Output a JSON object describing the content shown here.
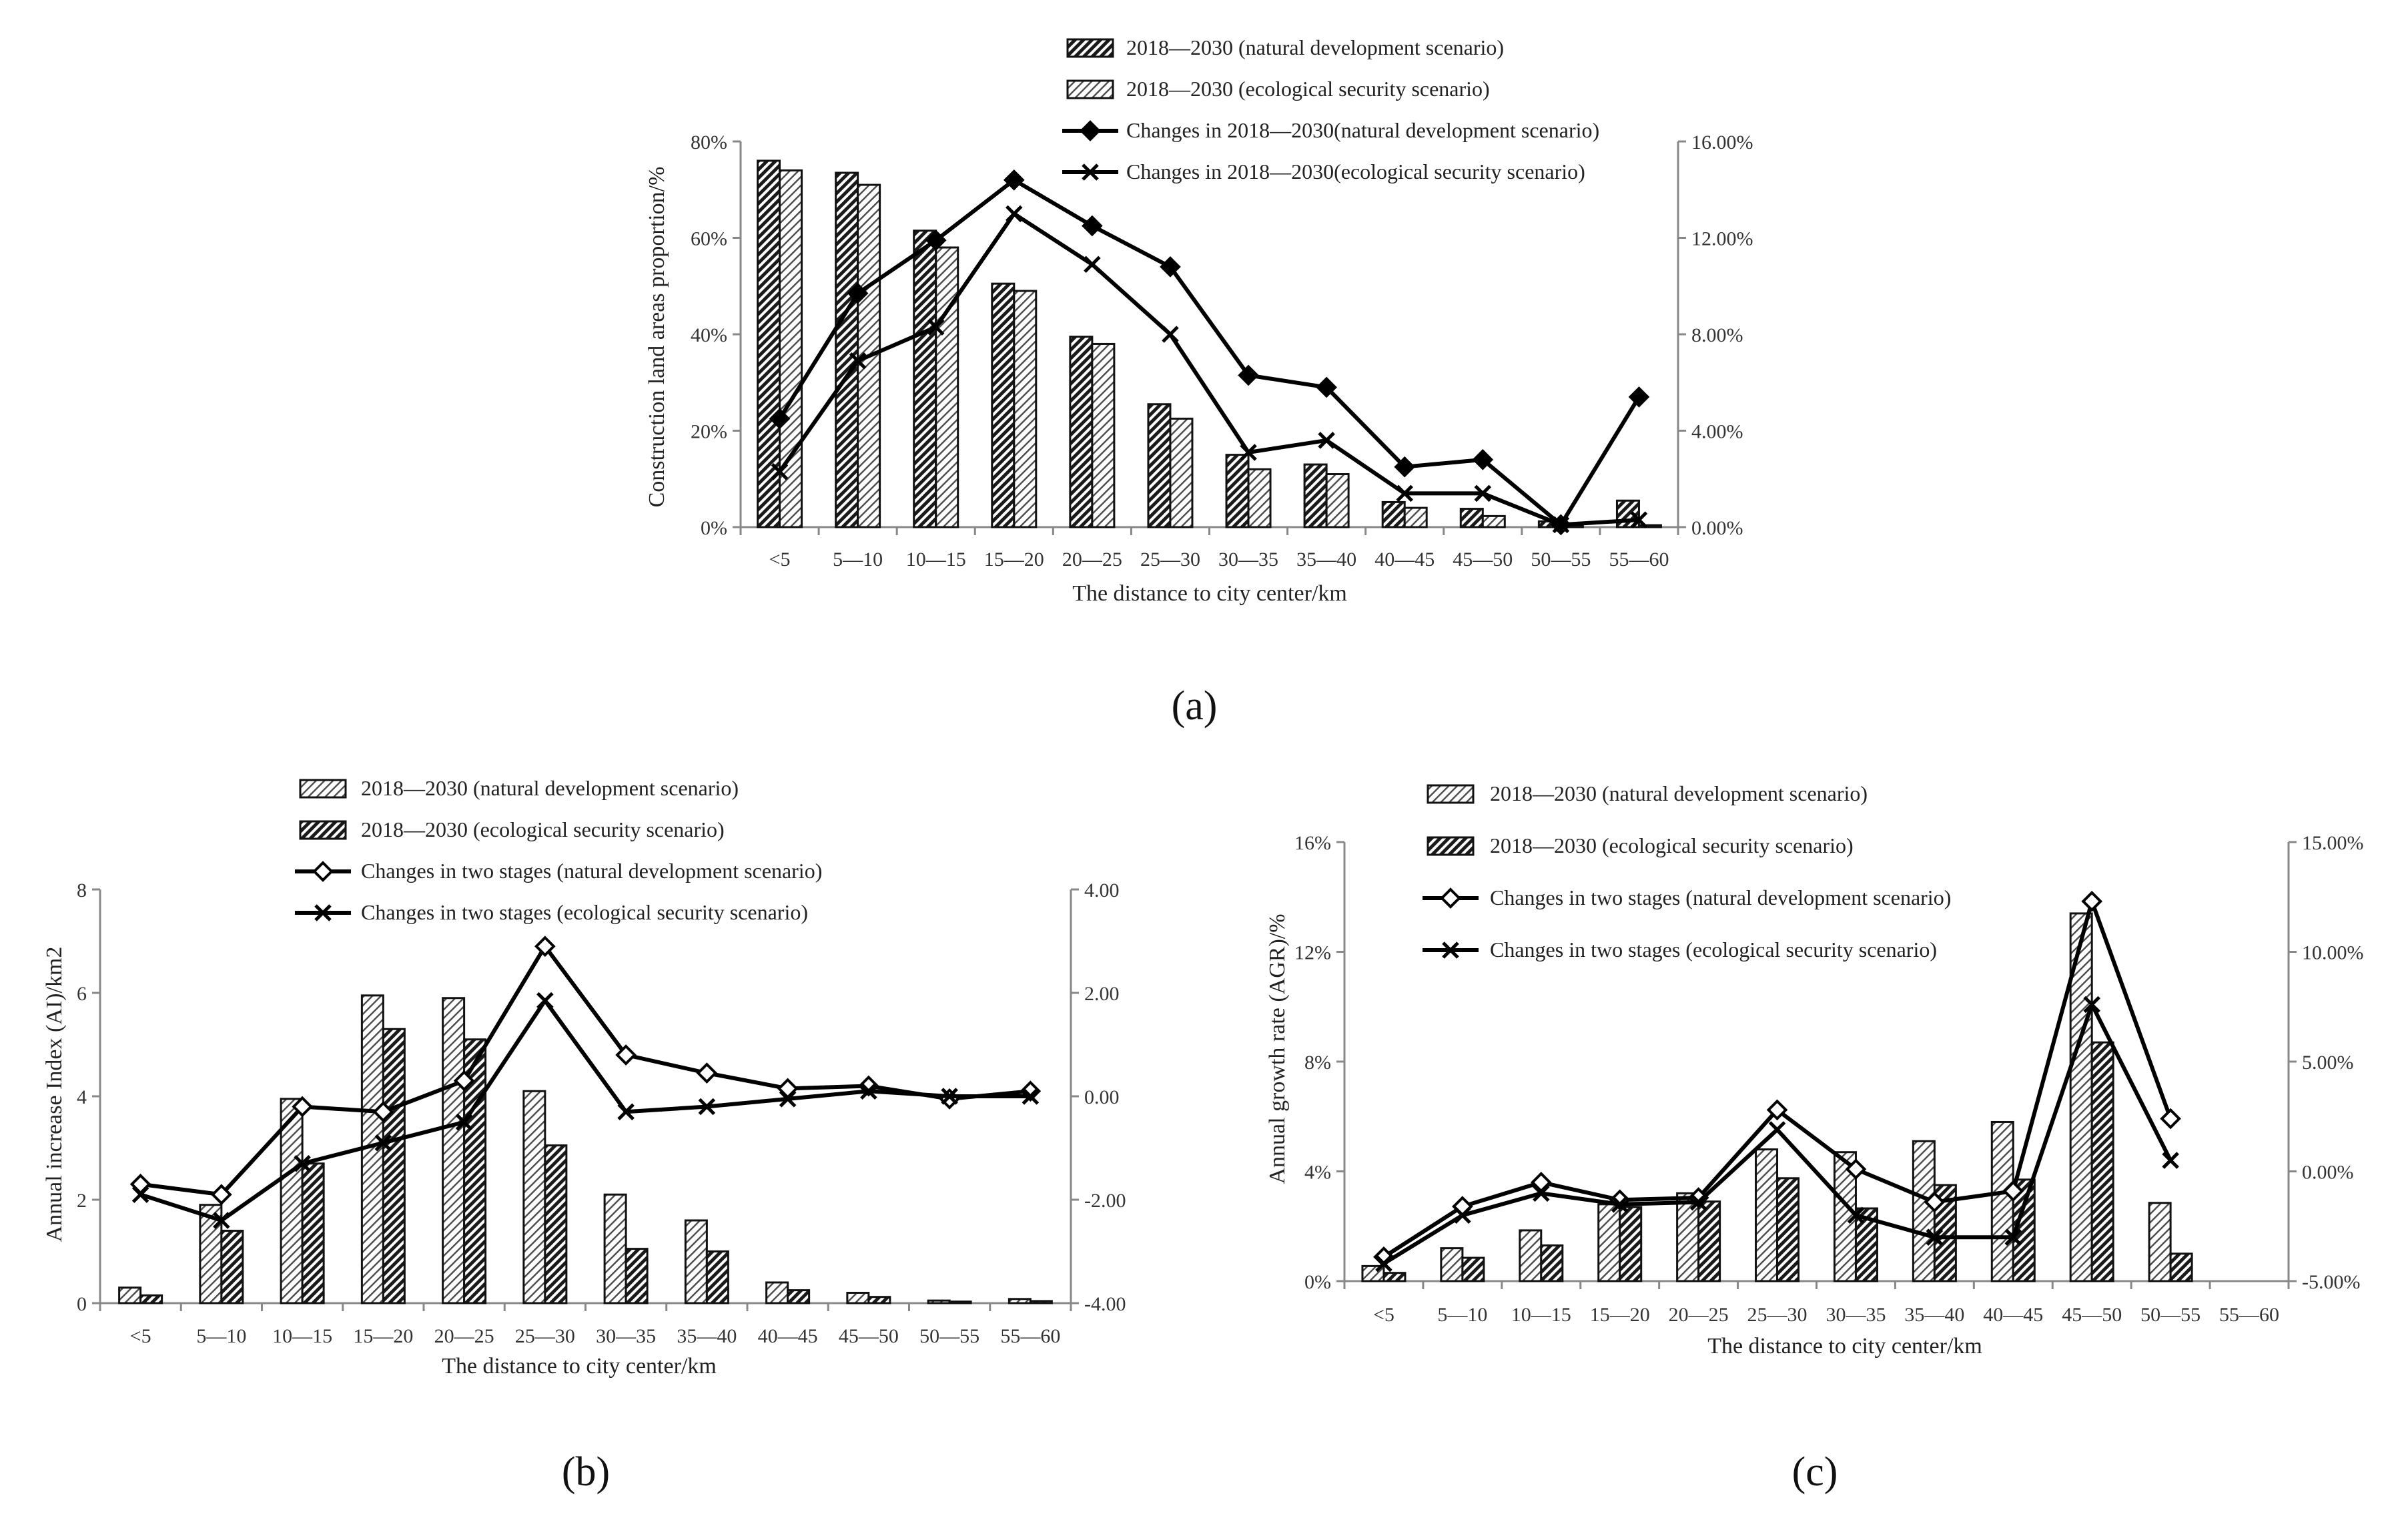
{
  "chart_data": [
    {
      "panel": "a",
      "type": "bar",
      "categories": [
        "<5",
        "5—10",
        "10—15",
        "15—20",
        "20—25",
        "25—30",
        "30—35",
        "35—40",
        "40—45",
        "45—50",
        "50—55",
        "55—60"
      ],
      "xlabel": "The distance to city center/km",
      "ylabel": "Construction land areas proportion/%",
      "ylim": [
        0,
        80
      ],
      "yticks": [
        0,
        20,
        40,
        60,
        80
      ],
      "ytick_labels": [
        "0%",
        "20%",
        "40%",
        "60%",
        "80%"
      ],
      "y2lim": [
        0,
        16
      ],
      "y2ticks": [
        0,
        4,
        8,
        12,
        16
      ],
      "y2tick_labels": [
        "0.00%",
        "4.00%",
        "8.00%",
        "12.00%",
        "16.00%"
      ],
      "series": [
        {
          "name": "2018—2030 (natural development scenario)",
          "kind": "bar",
          "pattern": "dense",
          "values": [
            76,
            73.5,
            61.5,
            50.5,
            39.5,
            25.5,
            15,
            13,
            5.2,
            3.8,
            1.2,
            5.5
          ]
        },
        {
          "name": "2018—2030 (ecological security scenario)",
          "kind": "bar",
          "pattern": "light",
          "values": [
            74,
            71,
            58,
            49,
            38,
            22.5,
            12,
            11,
            4,
            2.3,
            0.3,
            0.4
          ]
        },
        {
          "name": "Changes in 2018—2030(natural development scenario)",
          "kind": "line",
          "marker": "diamond-filled",
          "axis": "right",
          "values": [
            4.5,
            9.7,
            11.9,
            14.4,
            12.5,
            10.8,
            6.3,
            5.8,
            2.5,
            2.8,
            0.1,
            5.4
          ]
        },
        {
          "name": "Changes in 2018—2030(ecological security scenario)",
          "kind": "line",
          "marker": "x",
          "axis": "right",
          "values": [
            2.3,
            6.9,
            8.3,
            13,
            10.9,
            8,
            3.1,
            3.6,
            1.4,
            1.4,
            0.1,
            0.3
          ]
        }
      ]
    },
    {
      "panel": "b",
      "type": "bar",
      "categories": [
        "<5",
        "5—10",
        "10—15",
        "15—20",
        "20—25",
        "25—30",
        "30—35",
        "35—40",
        "40—45",
        "45—50",
        "50—55",
        "55—60"
      ],
      "xlabel": "The distance to city center/km",
      "ylabel": "Annual increase Index (AI)/km2",
      "ylim": [
        0,
        8
      ],
      "yticks": [
        0,
        2,
        4,
        6,
        8
      ],
      "ytick_labels": [
        "0",
        "2",
        "4",
        "6",
        "8"
      ],
      "y2lim": [
        -4,
        4
      ],
      "y2ticks": [
        -4,
        -2,
        0,
        2,
        4
      ],
      "y2tick_labels": [
        "-4.00",
        "-2.00",
        "0.00",
        "2.00",
        "4.00"
      ],
      "series": [
        {
          "name": "2018—2030 (natural development scenario)",
          "kind": "bar",
          "pattern": "light",
          "values": [
            0.3,
            1.9,
            3.95,
            5.95,
            5.9,
            4.1,
            2.1,
            1.6,
            0.4,
            0.2,
            0.05,
            0.08
          ]
        },
        {
          "name": "2018—2030 (ecological security scenario)",
          "kind": "bar",
          "pattern": "dense",
          "values": [
            0.15,
            1.4,
            2.7,
            5.3,
            5.1,
            3.05,
            1.05,
            1.0,
            0.25,
            0.12,
            0.03,
            0.04
          ]
        },
        {
          "name": "Changes in two stages (natural development scenario)",
          "kind": "line",
          "marker": "diamond-open",
          "axis": "right",
          "values": [
            -1.7,
            -1.9,
            -0.2,
            -0.3,
            0.3,
            2.9,
            0.8,
            0.45,
            0.15,
            0.2,
            -0.05,
            0.1
          ]
        },
        {
          "name": "Changes in two stages (ecological security scenario)",
          "kind": "line",
          "marker": "x",
          "axis": "right",
          "values": [
            -1.9,
            -2.4,
            -1.3,
            -0.9,
            -0.5,
            1.85,
            -0.3,
            -0.2,
            -0.05,
            0.1,
            0.0,
            0.0
          ]
        }
      ]
    },
    {
      "panel": "c",
      "type": "bar",
      "categories": [
        "<5",
        "5—10",
        "10—15",
        "15—20",
        "20—25",
        "25—30",
        "30—35",
        "35—40",
        "40—45",
        "45—50",
        "50—55",
        "55—60"
      ],
      "xlabel": "The distance to city center/km",
      "ylabel": "Annual growth rate (AGR)/%",
      "ylim": [
        0,
        16
      ],
      "yticks": [
        0,
        4,
        8,
        12,
        16
      ],
      "ytick_labels": [
        "0%",
        "4%",
        "8%",
        "12%",
        "16%"
      ],
      "y2lim": [
        -5,
        15
      ],
      "y2ticks": [
        -5,
        0,
        5,
        10,
        15
      ],
      "y2tick_labels": [
        "-5.00%",
        "0.00%",
        "5.00%",
        "10.00%",
        "15.00%"
      ],
      "series": [
        {
          "name": "2018—2030 (natural development scenario)",
          "kind": "bar",
          "pattern": "light",
          "values": [
            0.55,
            1.2,
            1.85,
            2.8,
            3.2,
            4.8,
            4.7,
            5.1,
            5.8,
            13.4,
            2.85,
            null
          ]
        },
        {
          "name": "2018—2030 (ecological security scenario)",
          "kind": "bar",
          "pattern": "dense",
          "values": [
            0.3,
            0.85,
            1.3,
            2.7,
            2.9,
            3.75,
            2.65,
            3.5,
            3.7,
            8.7,
            1.0,
            null
          ]
        },
        {
          "name": "Changes in two stages (natural development scenario)",
          "kind": "line",
          "marker": "diamond-open",
          "axis": "right",
          "values": [
            -3.9,
            -1.6,
            -0.5,
            -1.3,
            -1.2,
            2.8,
            0.1,
            -1.4,
            -0.9,
            12.3,
            2.4,
            null
          ]
        },
        {
          "name": "Changes in two stages (ecological security scenario)",
          "kind": "line",
          "marker": "x",
          "axis": "right",
          "values": [
            -4.2,
            -2.0,
            -1.0,
            -1.5,
            -1.4,
            1.9,
            -2.0,
            -3.0,
            -3.0,
            7.6,
            0.5,
            null
          ]
        }
      ]
    }
  ],
  "panel_labels": [
    "(a)",
    "(b)",
    "(c)"
  ]
}
